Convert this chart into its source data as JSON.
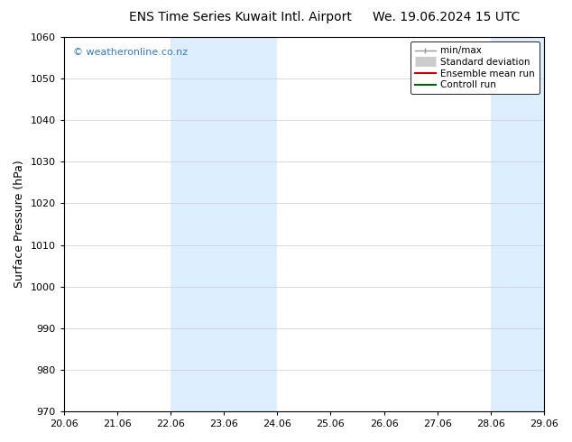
{
  "title_left": "ENS Time Series Kuwait Intl. Airport",
  "title_right": "We. 19.06.2024 15 UTC",
  "ylabel": "Surface Pressure (hPa)",
  "ylim": [
    970,
    1060
  ],
  "yticks": [
    970,
    980,
    990,
    1000,
    1010,
    1020,
    1030,
    1040,
    1050,
    1060
  ],
  "xtick_labels": [
    "20.06",
    "21.06",
    "22.06",
    "23.06",
    "24.06",
    "25.06",
    "26.06",
    "27.06",
    "28.06",
    "29.06"
  ],
  "xlim": [
    0,
    9
  ],
  "shaded_regions": [
    {
      "xstart": 2.0,
      "xend": 4.0
    },
    {
      "xstart": 8.0,
      "xend": 9.5
    }
  ],
  "shaded_color": "#ddeeff",
  "watermark_text": "© weatheronline.co.nz",
  "watermark_color": "#3377cc",
  "legend_entries": [
    {
      "label": "min/max",
      "color": "#aaaaaa",
      "lw": 1.5
    },
    {
      "label": "Standard deviation",
      "color": "#cccccc",
      "lw": 6
    },
    {
      "label": "Ensemble mean run",
      "color": "#cc0000",
      "lw": 1.5
    },
    {
      "label": "Controll run",
      "color": "#006600",
      "lw": 1.5
    }
  ],
  "bg_color": "#ffffff",
  "grid_color": "#cccccc",
  "title_fontsize": 10,
  "ylabel_fontsize": 9,
  "tick_fontsize": 8,
  "watermark_fontsize": 8,
  "legend_fontsize": 7.5
}
